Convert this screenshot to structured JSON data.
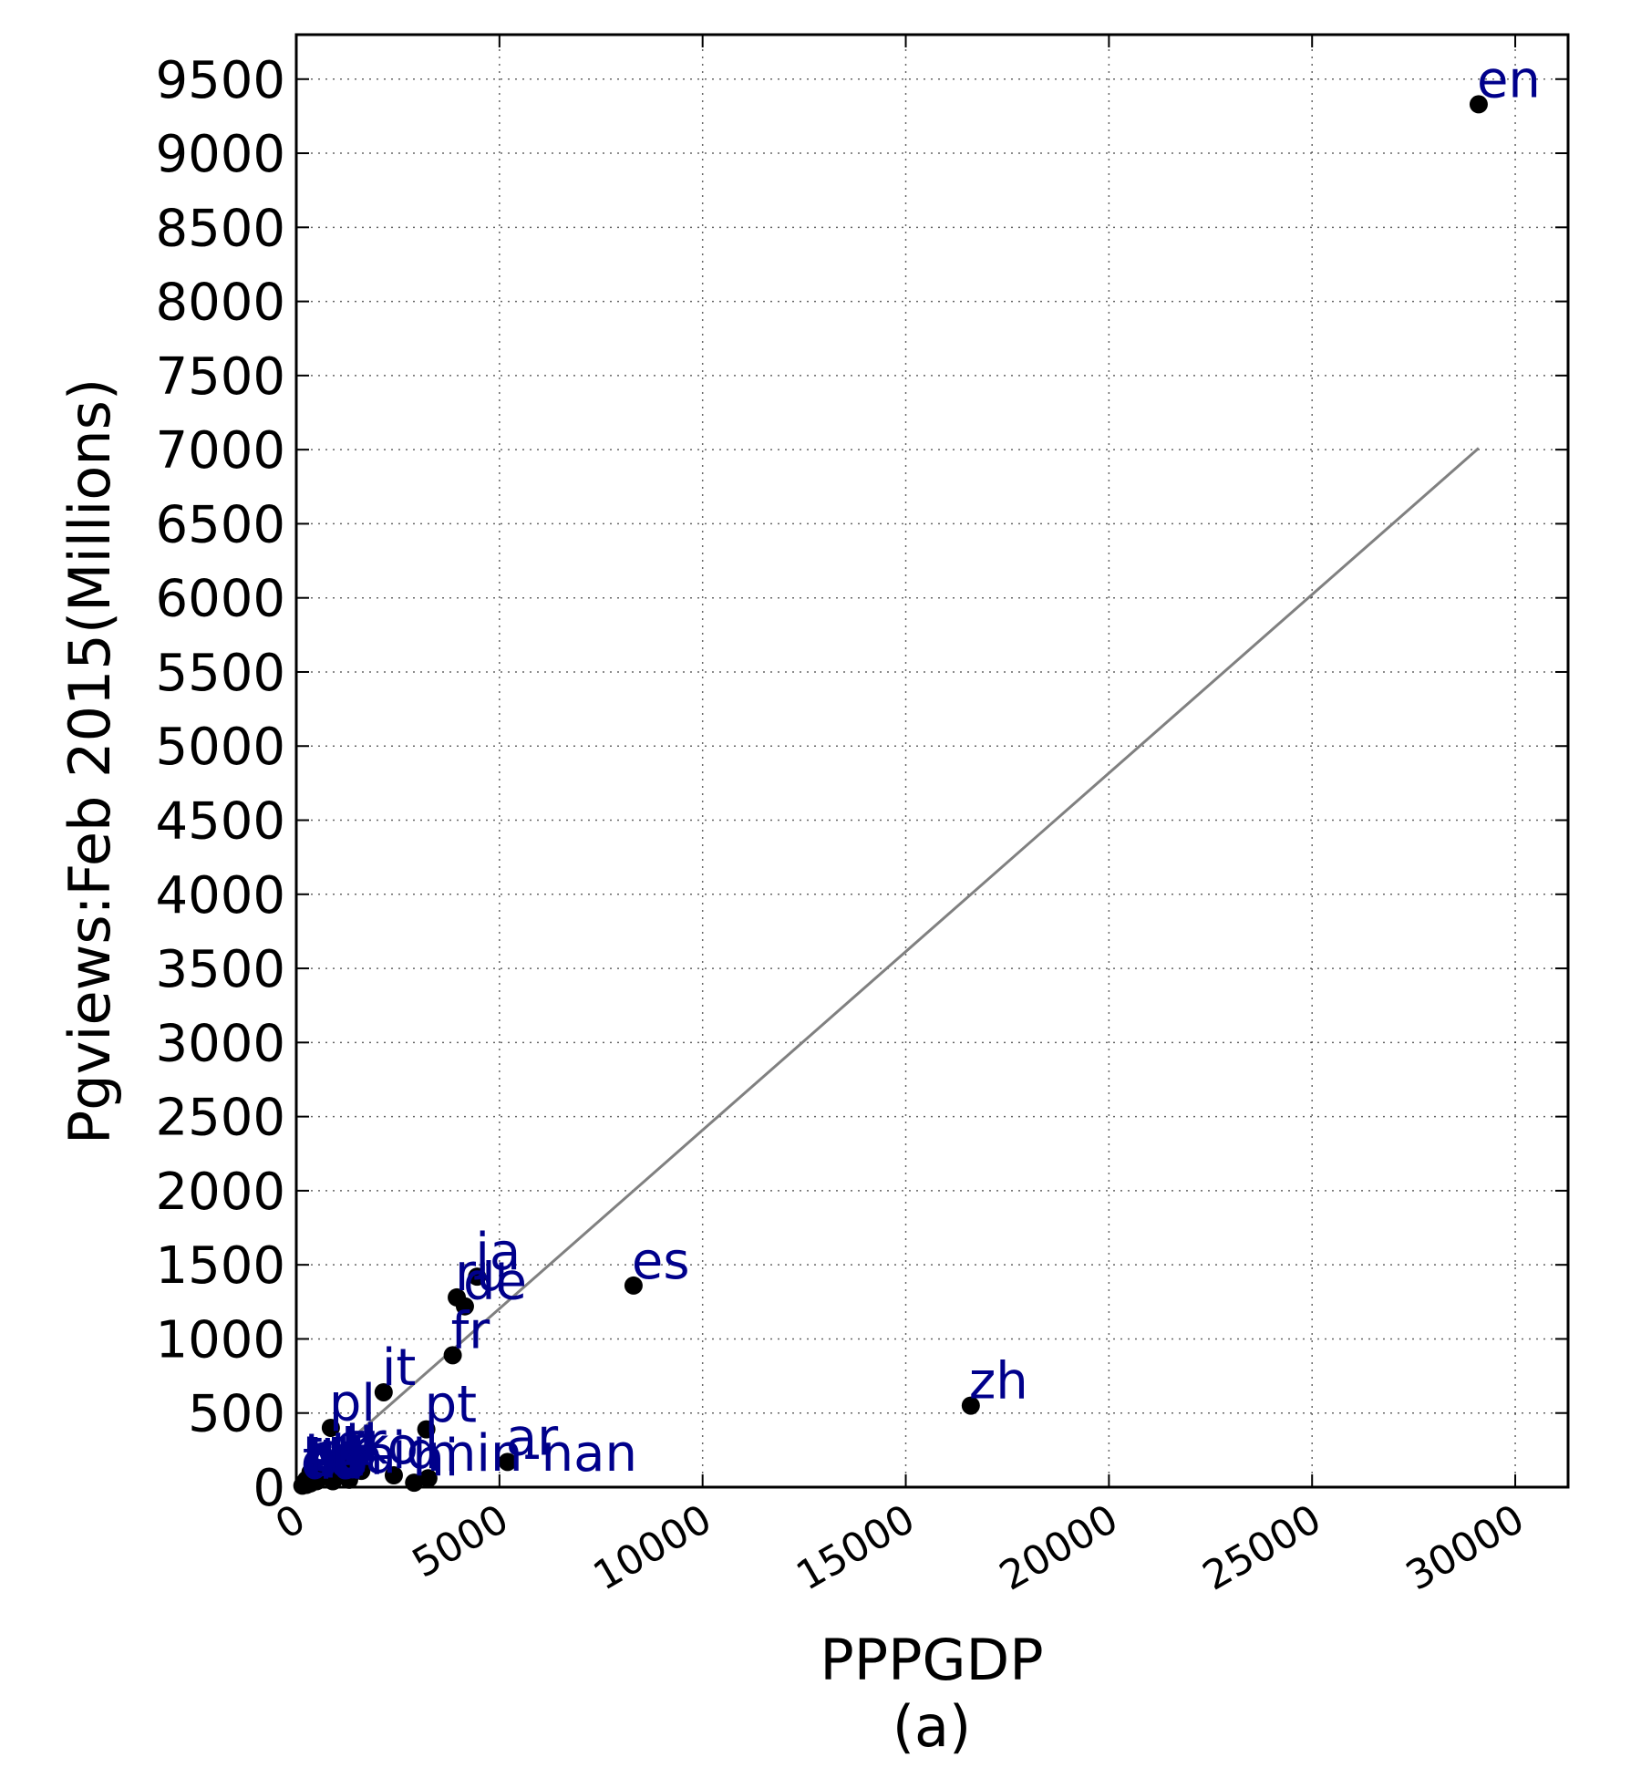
{
  "chart_data": {
    "type": "scatter",
    "title": "",
    "subtitle": "(a)",
    "xlabel": "PPPGDP",
    "ylabel": "Pgviews:Feb 2015(Millions)",
    "xlim": [
      0,
      31300
    ],
    "ylim": [
      0,
      9800
    ],
    "x_ticks": [
      0,
      5000,
      10000,
      15000,
      20000,
      25000,
      30000
    ],
    "y_ticks": [
      0,
      500,
      1000,
      1500,
      2000,
      2500,
      3000,
      3500,
      4000,
      4500,
      5000,
      5500,
      6000,
      6500,
      7000,
      7500,
      8000,
      8500,
      9000,
      9500
    ],
    "grid": true,
    "colors": {
      "points": "#000000",
      "labels": "#00008b",
      "fit_line": "#808080"
    },
    "points": [
      {
        "label": "en",
        "x": 29100,
        "y": 9330
      },
      {
        "label": "es",
        "x": 8300,
        "y": 1360
      },
      {
        "label": "zh",
        "x": 16600,
        "y": 550
      },
      {
        "label": "ja",
        "x": 4450,
        "y": 1420
      },
      {
        "label": "ru",
        "x": 3950,
        "y": 1280
      },
      {
        "label": "de",
        "x": 4150,
        "y": 1220
      },
      {
        "label": "fr",
        "x": 3850,
        "y": 890
      },
      {
        "label": "it",
        "x": 2150,
        "y": 640
      },
      {
        "label": "pl",
        "x": 850,
        "y": 400
      },
      {
        "label": "pt",
        "x": 3200,
        "y": 390
      },
      {
        "label": "ar",
        "x": 5200,
        "y": 170
      },
      {
        "label": "min-nan",
        "x": 3250,
        "y": 60
      },
      {
        "label": "tr",
        "x": 1250,
        "y": 140
      },
      {
        "label": "nl",
        "x": 900,
        "y": 130
      },
      {
        "label": "id",
        "x": 2400,
        "y": 80
      },
      {
        "label": "sv",
        "x": 500,
        "y": 70
      },
      {
        "label": "fa",
        "x": 1300,
        "y": 50
      },
      {
        "label": "hi",
        "x": 2900,
        "y": 30
      },
      {
        "label": "ko",
        "x": 1600,
        "y": 110
      },
      {
        "label": "uk",
        "x": 350,
        "y": 100
      },
      {
        "label": "cs",
        "x": 300,
        "y": 60
      },
      {
        "label": "vi",
        "x": 500,
        "y": 40
      },
      {
        "label": "hu",
        "x": 200,
        "y": 30
      },
      {
        "label": "he",
        "x": 250,
        "y": 50
      },
      {
        "label": "fi",
        "x": 200,
        "y": 20
      },
      {
        "label": "no",
        "x": 250,
        "y": 15
      },
      {
        "label": "ro",
        "x": 350,
        "y": 25
      },
      {
        "label": "da",
        "x": 150,
        "y": 10
      },
      {
        "label": "th",
        "x": 900,
        "y": 40
      },
      {
        "label": "el",
        "x": 250,
        "y": 30
      }
    ],
    "fit_line": {
      "x": [
        0,
        29100
      ],
      "y": [
        0,
        7010
      ]
    }
  }
}
